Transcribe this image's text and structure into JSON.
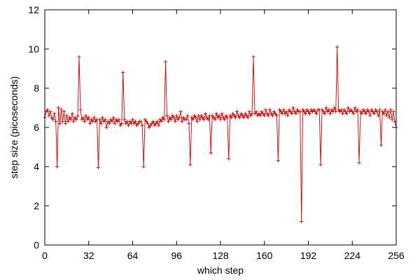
{
  "chart_data": {
    "type": "line",
    "xlabel": "which step",
    "ylabel": "step size (picoseconds)",
    "xlim": [
      0,
      256
    ],
    "ylim": [
      0,
      12
    ],
    "xticks": [
      0,
      32,
      64,
      96,
      128,
      160,
      192,
      224,
      256
    ],
    "yticks": [
      0,
      2,
      4,
      6,
      8,
      10,
      12
    ],
    "grid": false,
    "marker": "plus",
    "series": [
      {
        "color": "#cc0000",
        "y": [
          6.5,
          6.8,
          6.9,
          6.6,
          6.8,
          6.5,
          6.4,
          6.7,
          6.3,
          4.0,
          7.0,
          6.2,
          6.9,
          6.3,
          6.8,
          6.2,
          6.6,
          6.3,
          6.5,
          6.4,
          6.7,
          6.3,
          6.5,
          6.4,
          6.6,
          9.6,
          6.9,
          6.4,
          6.5,
          6.3,
          6.6,
          6.4,
          6.5,
          6.2,
          6.4,
          6.3,
          6.5,
          6.3,
          6.4,
          3.95,
          6.4,
          6.2,
          6.5,
          6.3,
          6.4,
          6.0,
          6.3,
          6.2,
          6.4,
          6.3,
          6.5,
          6.2,
          6.4,
          6.3,
          6.4,
          6.1,
          6.2,
          8.8,
          6.4,
          6.2,
          6.3,
          6.1,
          6.3,
          6.2,
          6.4,
          6.2,
          6.3,
          6.1,
          6.2,
          6.3,
          6.3,
          6.1,
          3.99,
          6.4,
          6.3,
          6.2,
          6.0,
          6.1,
          6.2,
          6.3,
          6.1,
          6.2,
          6.3,
          6.1,
          6.4,
          6.3,
          6.5,
          6.4,
          9.35,
          6.6,
          6.3,
          6.5,
          6.4,
          6.6,
          6.5,
          6.3,
          6.6,
          6.4,
          6.5,
          6.8,
          6.3,
          6.5,
          6.4,
          6.4,
          6.6,
          6.2,
          4.1,
          6.5,
          6.4,
          6.6,
          6.5,
          6.3,
          6.6,
          6.4,
          6.6,
          6.5,
          6.4,
          6.7,
          6.5,
          6.4,
          6.6,
          4.7,
          6.6,
          6.5,
          6.4,
          6.7,
          6.5,
          6.6,
          6.4,
          6.7,
          6.5,
          6.4,
          6.6,
          6.5,
          4.4,
          6.6,
          6.5,
          6.7,
          6.6,
          6.5,
          6.8,
          6.6,
          6.5,
          6.7,
          6.6,
          6.5,
          6.7,
          6.6,
          6.5,
          6.8,
          6.6,
          6.7,
          9.6,
          6.7,
          6.8,
          6.6,
          6.7,
          6.6,
          6.8,
          6.7,
          6.6,
          6.9,
          6.7,
          6.6,
          6.9,
          6.7,
          6.6,
          6.8,
          6.7,
          6.6,
          4.3,
          6.9,
          6.8,
          6.7,
          6.9,
          6.7,
          6.8,
          6.6,
          6.9,
          6.8,
          6.7,
          7.0,
          6.8,
          6.7,
          6.9,
          6.8,
          6.8,
          1.2,
          6.9,
          6.8,
          6.7,
          6.9,
          6.8,
          6.7,
          6.9,
          6.8,
          6.9,
          6.8,
          6.7,
          6.9,
          6.9,
          4.1,
          6.9,
          6.8,
          6.7,
          7.0,
          6.8,
          6.9,
          6.7,
          6.9,
          6.8,
          7.0,
          6.8,
          10.1,
          6.9,
          6.8,
          6.9,
          6.7,
          6.9,
          6.8,
          6.7,
          7.0,
          6.8,
          6.9,
          6.8,
          6.7,
          7.0,
          6.8,
          6.9,
          4.2,
          6.8,
          6.7,
          6.9,
          6.8,
          6.7,
          6.9,
          6.8,
          6.6,
          6.9,
          6.8,
          6.7,
          6.9,
          6.8,
          6.6,
          6.9,
          5.1,
          6.8,
          6.7,
          6.9,
          6.6,
          6.8,
          6.5,
          6.9,
          6.4,
          6.8,
          6.3,
          6.0
        ]
      }
    ]
  }
}
